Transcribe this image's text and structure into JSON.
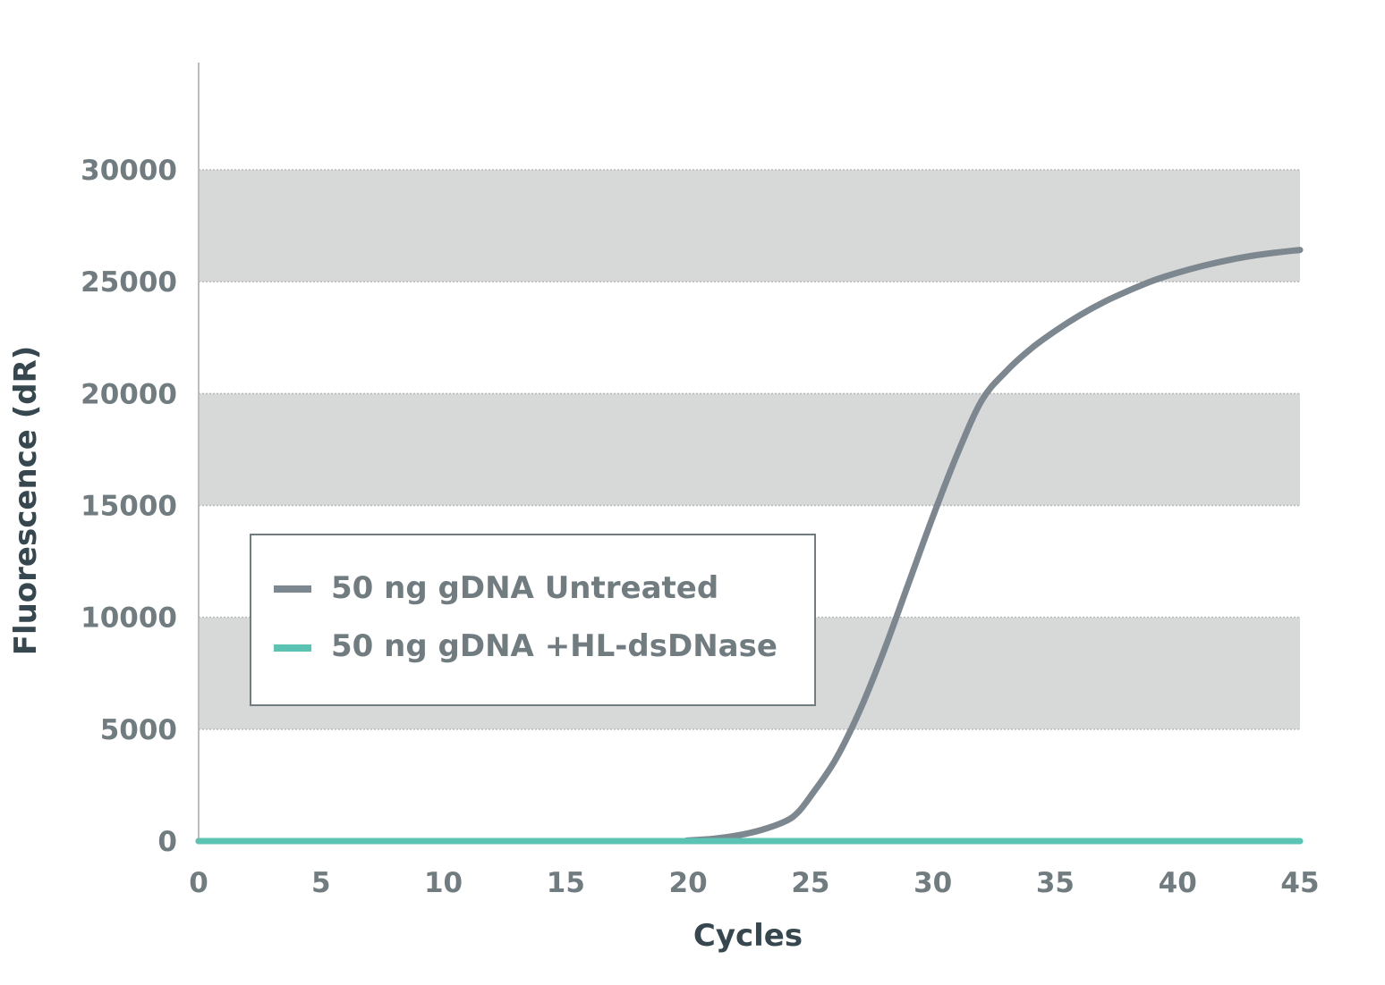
{
  "chart_data": {
    "type": "line",
    "title": "",
    "xlabel": "Cycles",
    "ylabel": "Fluorescence (dR)",
    "xlim": [
      0,
      45
    ],
    "ylim": [
      0,
      30000
    ],
    "xticks": [
      0,
      5,
      10,
      15,
      20,
      25,
      30,
      35,
      40,
      45
    ],
    "yticks": [
      0,
      5000,
      10000,
      15000,
      20000,
      25000,
      30000
    ],
    "grid": "horizontal alternating bands",
    "legend_position": "center-left",
    "series": [
      {
        "name": "50 ng gDNA Untreated",
        "color": "#7D878F",
        "x": [
          0,
          5,
          10,
          15,
          19.5,
          20,
          21,
          22,
          23,
          24,
          24.5,
          25,
          26,
          27,
          28,
          29,
          30,
          31,
          32,
          33,
          34,
          35,
          36,
          37,
          38,
          39,
          40,
          41,
          42,
          43,
          44,
          45
        ],
        "y": [
          0,
          0,
          0,
          0,
          0,
          30,
          100,
          250,
          500,
          900,
          1300,
          2000,
          3600,
          5800,
          8500,
          11500,
          14500,
          17300,
          19700,
          21000,
          22000,
          22800,
          23500,
          24100,
          24600,
          25050,
          25400,
          25700,
          25950,
          26150,
          26300,
          26420
        ]
      },
      {
        "name": "50 ng gDNA +HL-dsDNase",
        "color": "#5BC3B3",
        "x": [
          0,
          45
        ],
        "y": [
          0,
          0
        ]
      }
    ]
  }
}
